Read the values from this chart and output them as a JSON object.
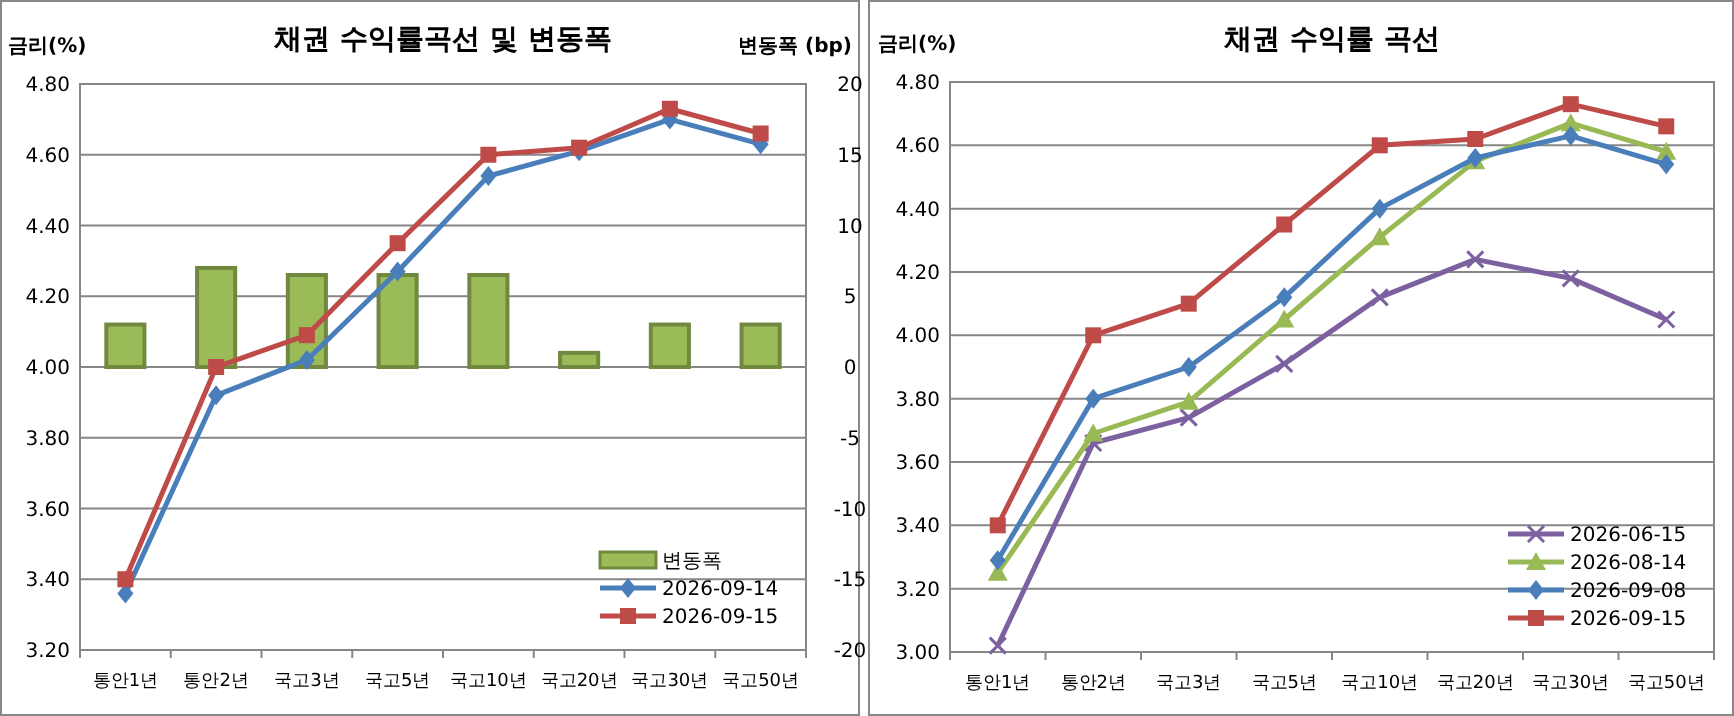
{
  "chart_data": [
    {
      "type": "line",
      "title": "채권 수익률곡선 및 변동폭",
      "ylabel": "금리(%)",
      "y2label": "변동폭 (bp)",
      "categories": [
        "통안1년",
        "통안2년",
        "국고3년",
        "국고5년",
        "국고10년",
        "국고20년",
        "국고30년",
        "국고50년"
      ],
      "series": [
        {
          "type": "bar",
          "name": "변동폭",
          "axis": "y2",
          "color": "#9bbb59",
          "values": [
            3,
            7,
            6.5,
            6.5,
            6.5,
            1,
            3,
            3
          ]
        },
        {
          "name": "2026-09-14",
          "color": "#4a7ebb",
          "marker": "diamond",
          "values": [
            3.36,
            3.92,
            4.02,
            4.27,
            4.54,
            4.61,
            4.7,
            4.63
          ]
        },
        {
          "name": "2026-09-15",
          "color": "#be4b48",
          "marker": "square",
          "values": [
            3.4,
            4.0,
            4.09,
            4.35,
            4.6,
            4.62,
            4.73,
            4.66
          ]
        }
      ],
      "ylim": [
        3.2,
        4.8
      ],
      "yticks": [
        {
          "value": 3.2,
          "label": "3.20"
        },
        {
          "value": 3.4,
          "label": "3.40"
        },
        {
          "value": 3.6,
          "label": "3.60"
        },
        {
          "value": 3.8,
          "label": "3.80"
        },
        {
          "value": 4.0,
          "label": "4.00"
        },
        {
          "value": 4.2,
          "label": "4.20"
        },
        {
          "value": 4.4,
          "label": "4.40"
        },
        {
          "value": 4.6,
          "label": "4.60"
        },
        {
          "value": 4.8,
          "label": "4.80"
        }
      ],
      "y2lim": [
        -20,
        20
      ],
      "y2ticks": [
        -20,
        -15,
        -10,
        -5,
        0,
        5,
        10,
        15,
        20
      ],
      "grid": "y",
      "legend": "bottom right",
      "line_style": "solid"
    },
    {
      "type": "line",
      "title": "채권 수익률 곡선",
      "ylabel": "금리(%)",
      "categories": [
        "통안1년",
        "통안2년",
        "국고3년",
        "국고5년",
        "국고10년",
        "국고20년",
        "국고30년",
        "국고50년"
      ],
      "series": [
        {
          "name": "2026-06-15",
          "color": "#7d60a0",
          "marker": "cross",
          "values": [
            3.02,
            3.66,
            3.74,
            3.91,
            4.12,
            4.24,
            4.18,
            4.05
          ]
        },
        {
          "name": "2026-08-14",
          "color": "#98b954",
          "marker": "triangle",
          "values": [
            3.25,
            3.69,
            3.79,
            4.05,
            4.31,
            4.55,
            4.67,
            4.58
          ]
        },
        {
          "name": "2026-09-08",
          "color": "#4a7ebb",
          "marker": "diamond",
          "values": [
            3.29,
            3.8,
            3.9,
            4.12,
            4.4,
            4.56,
            4.63,
            4.54
          ]
        },
        {
          "name": "2026-09-15",
          "color": "#be4b48",
          "marker": "square",
          "values": [
            3.4,
            4.0,
            4.1,
            4.35,
            4.6,
            4.62,
            4.73,
            4.66
          ]
        }
      ],
      "ylim": [
        3.0,
        4.8
      ],
      "yticks": [
        {
          "value": 3.0,
          "label": "3.00"
        },
        {
          "value": 3.2,
          "label": "3.20"
        },
        {
          "value": 3.4,
          "label": "3.40"
        },
        {
          "value": 3.6,
          "label": "3.60"
        },
        {
          "value": 3.8,
          "label": "3.80"
        },
        {
          "value": 4.0,
          "label": "4.00"
        },
        {
          "value": 4.2,
          "label": "4.20"
        },
        {
          "value": 4.4,
          "label": "4.40"
        },
        {
          "value": 4.6,
          "label": "4.60"
        },
        {
          "value": 4.8,
          "label": "4.80"
        }
      ],
      "grid": "y",
      "legend": "bottom right",
      "line_style": "solid"
    }
  ]
}
